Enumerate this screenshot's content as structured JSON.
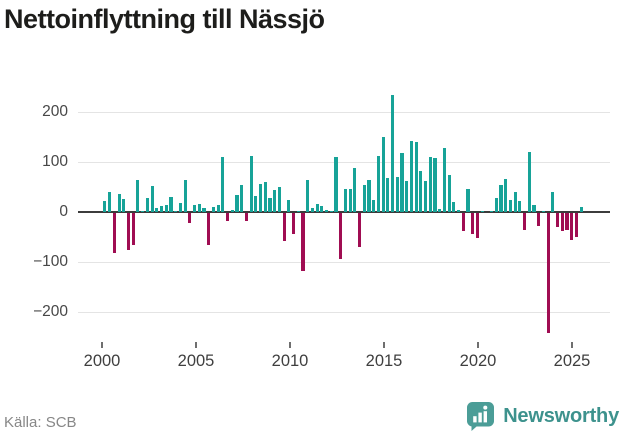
{
  "title": "Nettoinflyttning till Nässjö",
  "source": {
    "label": "Källa: SCB"
  },
  "logo": {
    "name": "Newsworthy",
    "icon": "newsworthy-speech-bubble-barchart-icon"
  },
  "colors": {
    "positive_bar": "#17A398",
    "negative_bar": "#A00D52",
    "gridline": "#e4e4e4",
    "zero_line": "#3c3c3c",
    "axis_text": "#474747",
    "title_text": "#1d1d1b",
    "source_text": "#878787",
    "logo_teal": "#4B9D97"
  },
  "chart_data": {
    "type": "bar",
    "title": "Nettoinflyttning till Nässjö",
    "frequency": "quarterly",
    "x_range": [
      "2000Q1",
      "2025Q2"
    ],
    "ylim": [
      -250,
      245
    ],
    "yticks": [
      200,
      100,
      0,
      -100,
      -200
    ],
    "ytick_labels": [
      "200",
      "100",
      "0",
      "−100",
      "−200"
    ],
    "xticks": [
      2000,
      2005,
      2010,
      2015,
      2020,
      2025
    ],
    "grid": "horizontal",
    "legend": "none",
    "series_by_year": [
      {
        "year": 2000,
        "values": [
          23,
          41,
          -80,
          36
        ]
      },
      {
        "year": 2001,
        "values": [
          26,
          -73,
          -64,
          64
        ]
      },
      {
        "year": 2002,
        "values": [
          3,
          29,
          52,
          8
        ]
      },
      {
        "year": 2003,
        "values": [
          12,
          15,
          30,
          3
        ]
      },
      {
        "year": 2004,
        "values": [
          18,
          65,
          -20,
          15
        ]
      },
      {
        "year": 2005,
        "values": [
          16,
          8,
          -64,
          11
        ]
      },
      {
        "year": 2006,
        "values": [
          15,
          110,
          -15,
          5
        ]
      },
      {
        "year": 2007,
        "values": [
          35,
          55,
          -16,
          112
        ]
      },
      {
        "year": 2008,
        "values": [
          33,
          57,
          60,
          29
        ]
      },
      {
        "year": 2009,
        "values": [
          45,
          50,
          -56,
          24
        ]
      },
      {
        "year": 2010,
        "values": [
          -41,
          2,
          -116,
          65
        ]
      },
      {
        "year": 2011,
        "values": [
          9,
          17,
          12,
          5
        ]
      },
      {
        "year": 2012,
        "values": [
          3,
          111,
          -92,
          46
        ]
      },
      {
        "year": 2013,
        "values": [
          46,
          88,
          -68,
          54
        ]
      },
      {
        "year": 2014,
        "values": [
          65,
          24,
          112,
          150
        ]
      },
      {
        "year": 2015,
        "values": [
          68,
          235,
          70,
          118
        ]
      },
      {
        "year": 2016,
        "values": [
          62,
          143,
          140,
          83
        ]
      },
      {
        "year": 2017,
        "values": [
          62,
          111,
          109,
          7
        ]
      },
      {
        "year": 2018,
        "values": [
          128,
          75,
          20,
          5
        ]
      },
      {
        "year": 2019,
        "values": [
          -36,
          46,
          -42,
          -50
        ]
      },
      {
        "year": 2020,
        "values": [
          2,
          0,
          3,
          28
        ]
      },
      {
        "year": 2021,
        "values": [
          54,
          66,
          25,
          40
        ]
      },
      {
        "year": 2022,
        "values": [
          22,
          -33,
          120,
          14
        ]
      },
      {
        "year": 2023,
        "values": [
          -25,
          2,
          -240,
          40
        ]
      },
      {
        "year": 2024,
        "values": [
          -28,
          -36,
          -34,
          -53
        ]
      },
      {
        "year": 2025,
        "values": [
          -47,
          11
        ]
      }
    ]
  }
}
